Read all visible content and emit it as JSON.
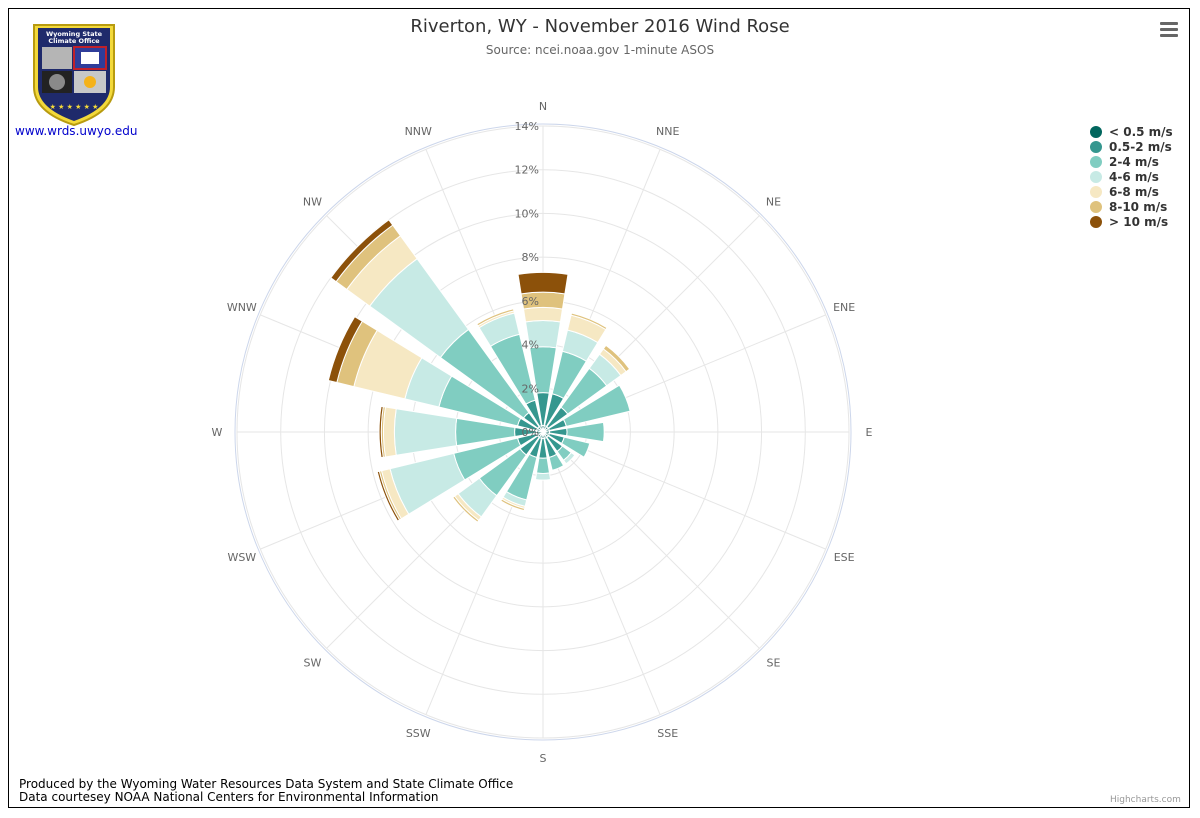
{
  "header": {
    "title": "Riverton, WY - November 2016 Wind Rose",
    "subtitle": "Source: ncei.noaa.gov 1-minute ASOS"
  },
  "logo": {
    "text_line1": "Wyoming State",
    "text_line2": "Climate Office",
    "link": "www.wrds.uwyo.edu"
  },
  "footer": {
    "line1": "Produced by the Wyoming Water Resources Data System and State Climate Office",
    "line2": "Data courtesey NOAA National Centers for Environmental Information",
    "credit": "Highcharts.com"
  },
  "menu": {
    "icon": "hamburger-menu-icon"
  },
  "chart_data": {
    "type": "windrose",
    "title": "Riverton, WY - November 2016 Wind Rose",
    "subtitle": "Source: ncei.noaa.gov 1-minute ASOS",
    "stacking": "normal",
    "legend_position": "top-right",
    "grid": true,
    "categories": [
      "N",
      "NNE",
      "NE",
      "ENE",
      "E",
      "ESE",
      "SE",
      "SSE",
      "S",
      "SSW",
      "SW",
      "WSW",
      "W",
      "WNW",
      "NW",
      "NNW"
    ],
    "yaxis": {
      "min": 0,
      "max": 14,
      "tick_interval": 2,
      "tick_labels": [
        "0%",
        "2%",
        "4%",
        "6%",
        "8%",
        "10%",
        "12%",
        "14%"
      ]
    },
    "series": [
      {
        "name": "< 0.5 m/s",
        "color": "#01665e",
        "values": [
          0.3,
          0.3,
          0.3,
          0.3,
          0.3,
          0.3,
          0.3,
          0.3,
          0.3,
          0.3,
          0.3,
          0.3,
          0.3,
          0.3,
          0.3,
          0.3
        ]
      },
      {
        "name": "0.5-2 m/s",
        "color": "#35978f",
        "values": [
          1.5,
          1.5,
          1.1,
          0.8,
          0.8,
          0.7,
          0.8,
          0.9,
          0.9,
          0.9,
          1.0,
          0.9,
          1.0,
          0.9,
          0.8,
          1.2
        ]
      },
      {
        "name": "2-4 m/s",
        "color": "#80cdc1",
        "values": [
          2.1,
          2.0,
          2.2,
          3.0,
          1.7,
          1.2,
          0.5,
          0.6,
          0.7,
          2.0,
          2.3,
          3.0,
          2.7,
          3.7,
          4.7,
          3.1
        ]
      },
      {
        "name": "4-6 m/s",
        "color": "#c7eae5",
        "values": [
          1.2,
          1.0,
          0.8,
          0,
          0,
          0,
          0.2,
          0,
          0.3,
          0.3,
          1.2,
          3.0,
          2.8,
          1.6,
          4.0,
          1.0
        ]
      },
      {
        "name": "6-8 m/s",
        "color": "#f6e8c3",
        "values": [
          0.6,
          0.7,
          0.3,
          0,
          0,
          0,
          0,
          0,
          0,
          0.1,
          0.2,
          0.4,
          0.5,
          2.4,
          1.3,
          0.1
        ]
      },
      {
        "name": "8-10 m/s",
        "color": "#dfc27d",
        "values": [
          0.7,
          0.1,
          0.2,
          0,
          0,
          0,
          0,
          0,
          0,
          0.1,
          0.1,
          0.1,
          0.1,
          0.8,
          0.6,
          0.1
        ]
      },
      {
        "name": "> 10 m/s",
        "color": "#8c510a",
        "values": [
          0.9,
          0,
          0,
          0,
          0,
          0,
          0,
          0,
          0,
          0,
          0,
          0.1,
          0.1,
          0.4,
          0.3,
          0
        ]
      }
    ]
  }
}
